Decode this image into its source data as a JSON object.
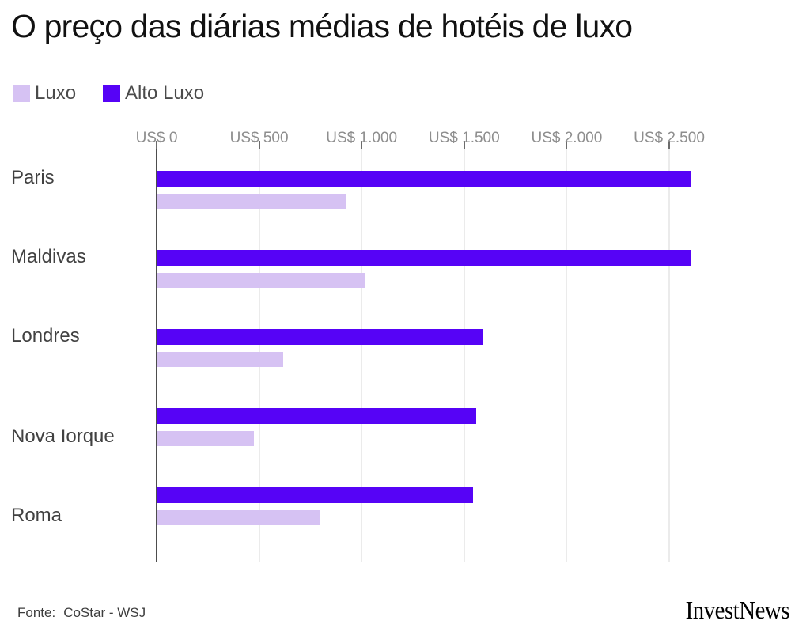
{
  "title": "O preço das diárias médias de hotéis de luxo",
  "legend": [
    {
      "label": "Luxo",
      "color": "#d6c2f3"
    },
    {
      "label": "Alto Luxo",
      "color": "#5603f6"
    }
  ],
  "chart_data": {
    "type": "bar",
    "orientation": "horizontal",
    "title": "O preço das diárias médias de hotéis de luxo",
    "unit": "US$",
    "categories": [
      "Paris",
      "Maldivas",
      "Londres",
      "Nova Iorque",
      "Roma"
    ],
    "series": [
      {
        "name": "Alto Luxo",
        "color": "#5603f6",
        "values": [
          2600,
          2600,
          1590,
          1555,
          1540
        ]
      },
      {
        "name": "Luxo",
        "color": "#d6c2f3",
        "values": [
          920,
          1015,
          615,
          470,
          790
        ]
      }
    ],
    "x_ticks": [
      {
        "value": 0,
        "label": "US$ 0"
      },
      {
        "value": 500,
        "label": "US$ 500"
      },
      {
        "value": 1000,
        "label": "US$ 1.000"
      },
      {
        "value": 1500,
        "label": "US$ 1.500"
      },
      {
        "value": 2000,
        "label": "US$ 2.000"
      },
      {
        "value": 2500,
        "label": "US$ 2.500"
      }
    ],
    "xlim": [
      0,
      2700
    ],
    "grid": "vertical",
    "legend_position": "top-left"
  },
  "source": {
    "prefix": "Fonte:",
    "text": "CoStar - WSJ"
  },
  "brand": "InvestNews"
}
